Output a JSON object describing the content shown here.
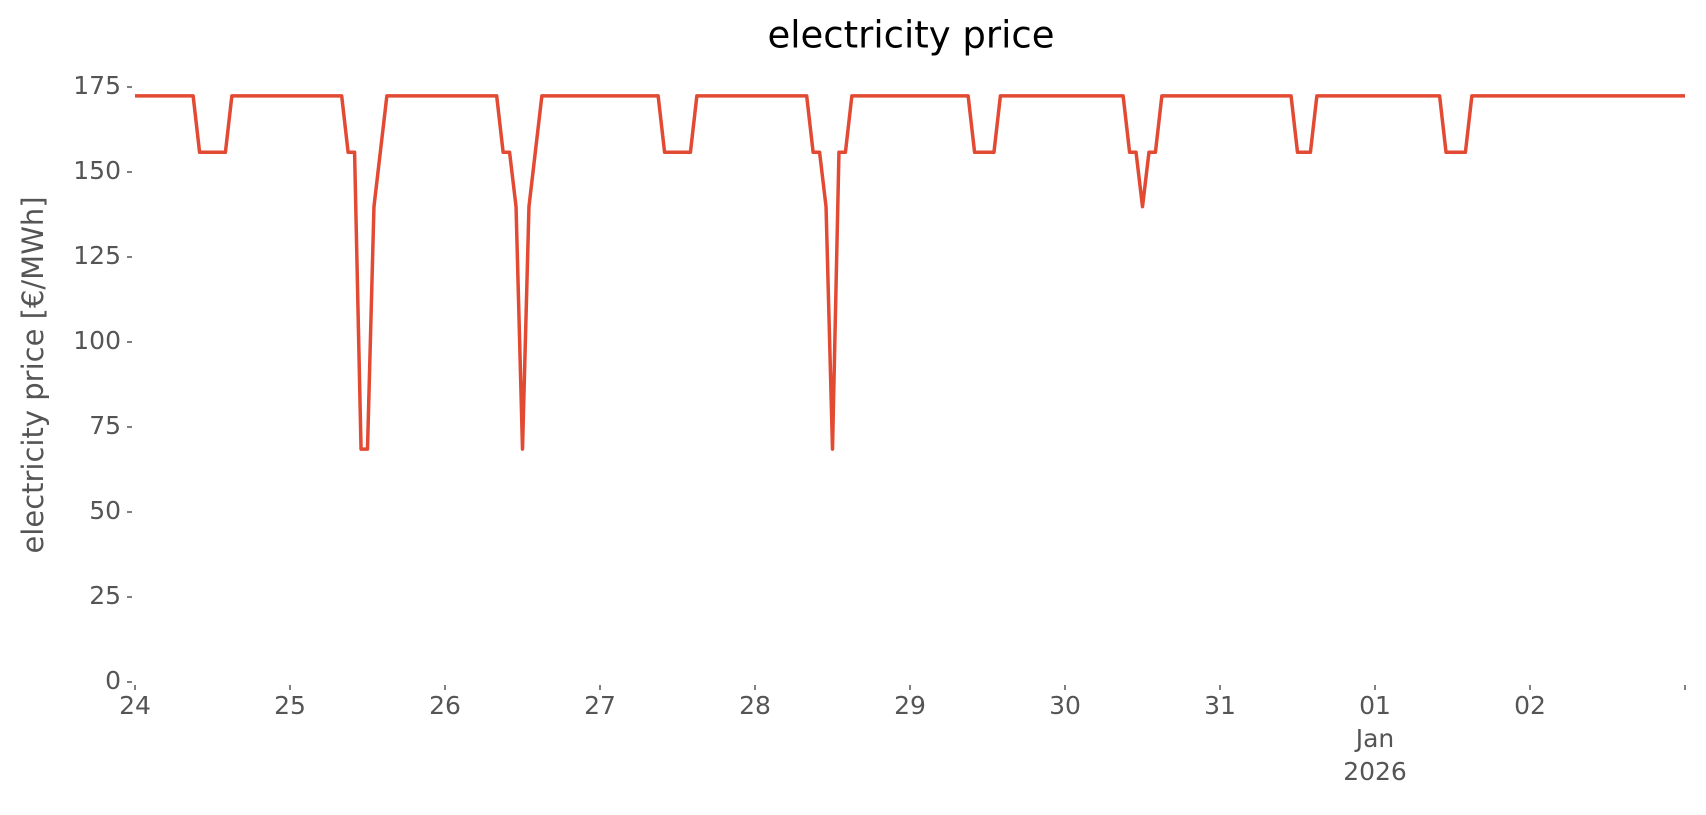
{
  "chart_data": {
    "type": "line",
    "title": "electricity price",
    "y_label": "electricity price [€/MWh]",
    "x": [
      0,
      9,
      10,
      14,
      15,
      32,
      33,
      34,
      35,
      36,
      37,
      39,
      56,
      57,
      58,
      59,
      60,
      61,
      63,
      81,
      82,
      86,
      87,
      104,
      105,
      106,
      107,
      108,
      109,
      110,
      111,
      129,
      130,
      133,
      134,
      153,
      154,
      155,
      156,
      157,
      158,
      159,
      179,
      180,
      182,
      183,
      202,
      203,
      206,
      207,
      240
    ],
    "series": [
      {
        "name": "electricity price",
        "color": "#e24a33",
        "values": [
          172.4,
          172.4,
          155.8,
          155.8,
          172.4,
          172.4,
          155.8,
          155.8,
          68.5,
          68.5,
          139.8,
          172.4,
          172.4,
          155.8,
          155.8,
          139.8,
          68.5,
          139.8,
          172.4,
          172.4,
          155.8,
          155.8,
          172.4,
          172.4,
          155.8,
          155.8,
          139.8,
          68.5,
          155.8,
          155.8,
          172.4,
          172.4,
          155.8,
          155.8,
          172.4,
          172.4,
          155.8,
          155.8,
          139.8,
          155.8,
          155.8,
          172.4,
          172.4,
          155.8,
          155.8,
          172.4,
          172.4,
          155.8,
          155.8,
          172.4,
          172.4
        ]
      }
    ],
    "xlim": [
      0,
      240
    ],
    "xticks": [
      {
        "value": 0,
        "label": [
          "24"
        ]
      },
      {
        "value": 24,
        "label": [
          "25"
        ]
      },
      {
        "value": 48,
        "label": [
          "26"
        ]
      },
      {
        "value": 72,
        "label": [
          "27"
        ]
      },
      {
        "value": 96,
        "label": [
          "28"
        ]
      },
      {
        "value": 120,
        "label": [
          "29"
        ]
      },
      {
        "value": 144,
        "label": [
          "30"
        ]
      },
      {
        "value": 168,
        "label": [
          "31"
        ]
      },
      {
        "value": 192,
        "label": [
          "01",
          "Jan",
          "2026"
        ]
      },
      {
        "value": 216,
        "label": [
          "02"
        ]
      },
      {
        "value": 240,
        "label": []
      }
    ],
    "ylim": [
      0,
      175
    ],
    "yticks": [
      0,
      25,
      50,
      75,
      100,
      125,
      150,
      175
    ],
    "grid": false
  }
}
